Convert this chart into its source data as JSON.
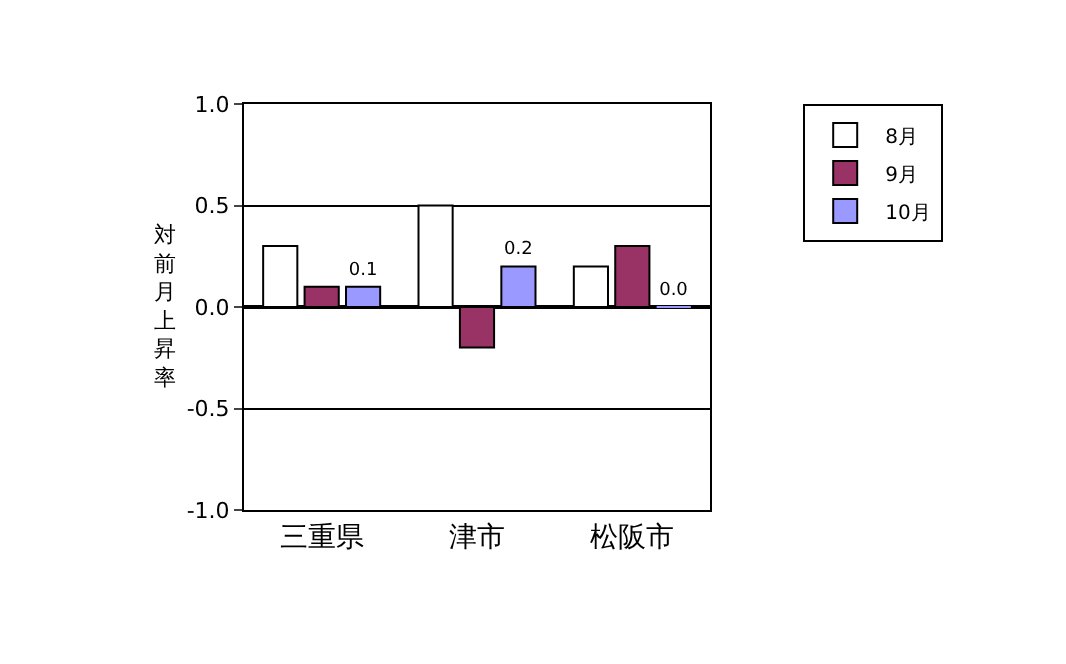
{
  "chart_data": {
    "type": "bar",
    "ylabel": "対前月上昇率",
    "categories": [
      "三重県",
      "津市",
      "松阪市"
    ],
    "series": [
      {
        "name": "8月",
        "color": "#ffffff",
        "values": [
          0.3,
          0.5,
          0.2
        ]
      },
      {
        "name": "9月",
        "color": "#993366",
        "values": [
          0.1,
          -0.2,
          0.3
        ]
      },
      {
        "name": "10月",
        "color": "#9999ff",
        "values": [
          0.1,
          0.2,
          0.0
        ],
        "value_labels": [
          "0.1",
          "0.2",
          "0.0"
        ]
      }
    ],
    "ylim": [
      -1.0,
      1.0
    ],
    "yticks": [
      {
        "value": -1.0,
        "label": "-1.0"
      },
      {
        "value": -0.5,
        "label": "-0.5"
      },
      {
        "value": 0.0,
        "label": "0.0"
      },
      {
        "value": 0.5,
        "label": "0.5"
      },
      {
        "value": 1.0,
        "label": "1.0"
      }
    ],
    "grid": "y",
    "legend": "top right"
  }
}
